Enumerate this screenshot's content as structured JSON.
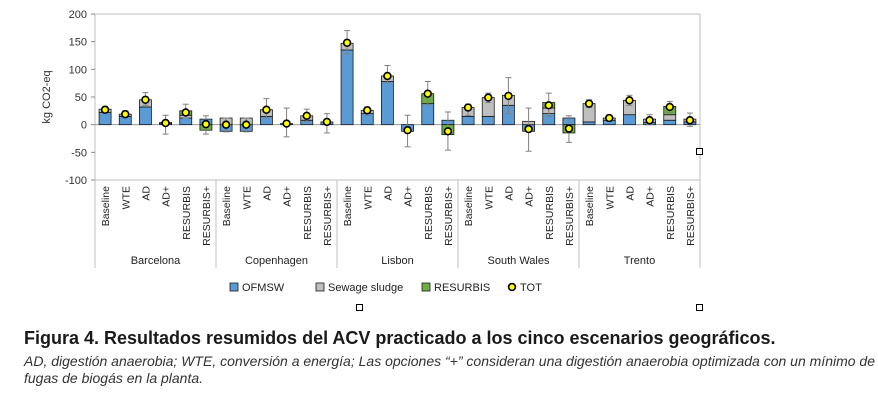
{
  "chart_data": {
    "type": "bar",
    "stacked": true,
    "ylabel": "kg CO2-eq",
    "ylim": [
      -100,
      200
    ],
    "yticks": [
      -100,
      -50,
      0,
      50,
      100,
      150,
      200
    ],
    "groups": [
      "Barcelona",
      "Copenhagen",
      "Lisbon",
      "South Wales",
      "Trento"
    ],
    "categories": [
      "Baseline",
      "WTE",
      "AD",
      "AD+",
      "RESURBIS",
      "RESURBIS+"
    ],
    "series": [
      {
        "name": "OFMSW",
        "color": "#5b9bd5",
        "values": [
          [
            22,
            15,
            32,
            2,
            12,
            10
          ],
          [
            -12,
            -12,
            15,
            2,
            8,
            5
          ],
          [
            135,
            20,
            78,
            -12,
            38,
            8
          ],
          [
            15,
            15,
            35,
            -12,
            20,
            12
          ],
          [
            5,
            8,
            18,
            4,
            8,
            5
          ]
        ]
      },
      {
        "name": "Sewage sludge",
        "color": "#bfbfbf",
        "values": [
          [
            6,
            4,
            13,
            2,
            5,
            0
          ],
          [
            12,
            12,
            12,
            0,
            8,
            0
          ],
          [
            12,
            6,
            10,
            0,
            0,
            0
          ],
          [
            16,
            34,
            18,
            6,
            10,
            0
          ],
          [
            33,
            4,
            26,
            6,
            10,
            5
          ]
        ]
      },
      {
        "name": "RESURBIS",
        "color": "#70ad47",
        "values": [
          [
            0,
            0,
            0,
            0,
            8,
            -10
          ],
          [
            0,
            0,
            0,
            0,
            0,
            0
          ],
          [
            0,
            0,
            0,
            0,
            18,
            -18
          ],
          [
            0,
            0,
            0,
            0,
            10,
            -15
          ],
          [
            0,
            0,
            0,
            0,
            15,
            0
          ]
        ]
      },
      {
        "name": "TOT",
        "color": "#ffff00",
        "type": "point",
        "values": [
          [
            27,
            19,
            45,
            3,
            22,
            1
          ],
          [
            0,
            0,
            27,
            2,
            16,
            5
          ],
          [
            148,
            26,
            88,
            -10,
            56,
            -12
          ],
          [
            31,
            49,
            52,
            -8,
            35,
            -7
          ],
          [
            38,
            12,
            44,
            8,
            32,
            8
          ]
        ]
      }
    ],
    "error_low": [
      [
        22,
        14,
        35,
        -17,
        12,
        -17
      ],
      [
        -13,
        -13,
        12,
        -22,
        5,
        -15
      ],
      [
        128,
        17,
        76,
        -40,
        36,
        -46
      ],
      [
        17,
        40,
        20,
        -48,
        15,
        -32
      ],
      [
        31,
        7,
        35,
        0,
        22,
        -3
      ]
    ],
    "error_high": [
      [
        33,
        25,
        58,
        17,
        37,
        16
      ],
      [
        12,
        12,
        47,
        30,
        28,
        20
      ],
      [
        170,
        32,
        107,
        17,
        78,
        23
      ],
      [
        37,
        57,
        85,
        30,
        57,
        16
      ],
      [
        45,
        17,
        53,
        18,
        42,
        21
      ]
    ],
    "legend_position": "bottom",
    "grid": false
  },
  "caption": {
    "title": "Figura 4. Resultados resumidos del ACV practicado a los cinco escenarios geográficos.",
    "subtitle": "AD, digestión anaerobia; WTE, conversión a energía; Las opciones “+” consideran una digestión anaerobia optimizada con un mínimo de fugas de biogás en la planta."
  }
}
